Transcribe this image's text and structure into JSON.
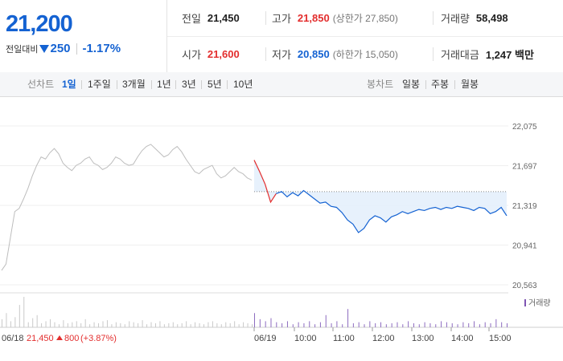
{
  "quote": {
    "price": "21,200",
    "change_label": "전일대비",
    "change_amount": "250",
    "change_pct": "-1.17%",
    "prev_close_label": "전일",
    "prev_close": "21,450",
    "high_label": "고가",
    "high": "21,850",
    "upper_limit": "(상한가 27,850)",
    "volume_label": "거래량",
    "volume": "58,498",
    "open_label": "시가",
    "open": "21,600",
    "low_label": "저가",
    "low": "20,850",
    "lower_limit": "(하한가 15,050)",
    "amount_label": "거래대금",
    "amount": "1,247 백만"
  },
  "toolbar": {
    "line_label": "선차트",
    "periods": [
      "1일",
      "1주일",
      "3개월",
      "1년",
      "3년",
      "5년",
      "10년"
    ],
    "candle_label": "봉차트",
    "candles": [
      "일봉",
      "주봉",
      "월봉"
    ]
  },
  "colors": {
    "up": "#e32e2e",
    "down": "#1462d2",
    "prev": "#bdbdbd",
    "fill": "#e3eefb"
  },
  "chart_data": {
    "type": "line",
    "ylim": [
      20563,
      22075
    ],
    "y_ticks": [
      "22,075",
      "21,697",
      "21,319",
      "20,941",
      "20,563"
    ],
    "x_ticks": [
      "06/19",
      "10:00",
      "11:00",
      "12:00",
      "13:00",
      "14:00",
      "15:00"
    ],
    "prev_day_label": "06/18",
    "prev_day_close": "21,450",
    "prev_day_change": "800",
    "prev_day_change_pct": "(+3.87%)",
    "volume_legend": "거래량",
    "baseline": 21450,
    "prev_day_series": [
      20700,
      20760,
      21010,
      21260,
      21290,
      21380,
      21480,
      21600,
      21700,
      21780,
      21760,
      21820,
      21860,
      21810,
      21720,
      21680,
      21650,
      21700,
      21720,
      21760,
      21780,
      21720,
      21700,
      21660,
      21680,
      21720,
      21780,
      21760,
      21720,
      21700,
      21710,
      21780,
      21840,
      21880,
      21900,
      21860,
      21820,
      21780,
      21800,
      21850,
      21880,
      21830,
      21760,
      21700,
      21640,
      21620,
      21660,
      21680,
      21700,
      21620,
      21580,
      21600,
      21640,
      21680,
      21640,
      21620,
      21580,
      21560
    ],
    "today_series": [
      21750,
      21640,
      21520,
      21350,
      21430,
      21450,
      21400,
      21440,
      21410,
      21460,
      21420,
      21380,
      21340,
      21350,
      21310,
      21300,
      21250,
      21180,
      21140,
      21060,
      21100,
      21180,
      21220,
      21200,
      21160,
      21210,
      21230,
      21260,
      21240,
      21260,
      21280,
      21270,
      21290,
      21300,
      21280,
      21300,
      21290,
      21310,
      21300,
      21290,
      21270,
      21300,
      21290,
      21240,
      21260,
      21300,
      21220
    ],
    "prev_volumes": [
      8,
      14,
      6,
      10,
      22,
      30,
      5,
      9,
      12,
      4,
      6,
      8,
      5,
      3,
      7,
      4,
      5,
      6,
      4,
      8,
      3,
      5,
      4,
      6,
      7,
      3,
      5,
      4,
      3,
      6,
      5,
      4,
      7,
      3,
      5,
      4,
      6,
      3,
      4,
      5,
      3,
      4,
      6,
      3,
      5,
      4,
      3,
      5,
      6,
      4,
      3,
      5,
      4,
      6,
      3,
      5,
      4,
      3
    ],
    "today_volumes": [
      14,
      8,
      6,
      9,
      5,
      4,
      6,
      3,
      5,
      4,
      6,
      3,
      5,
      12,
      4,
      6,
      3,
      18,
      4,
      5,
      3,
      6,
      4,
      5,
      3,
      4,
      5,
      3,
      6,
      4,
      3,
      5,
      4,
      3,
      6,
      5,
      4,
      3,
      5,
      4,
      6,
      3,
      5,
      4,
      8,
      5,
      4
    ]
  }
}
